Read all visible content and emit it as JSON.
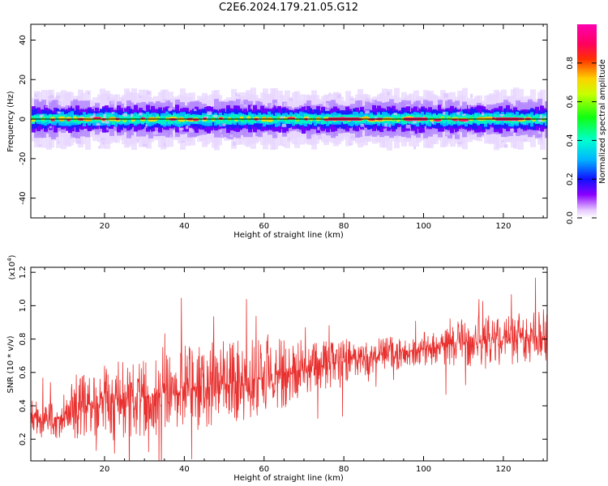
{
  "page_title": "C2E6.2024.179.21.05.G12",
  "colors": {
    "snr_line": "#e8302e",
    "spectral_band_core": "#00e0c0"
  },
  "chart_data": [
    {
      "type": "heatmap",
      "title": "C2E6.2024.179.21.05.G12",
      "xlabel": "Height of straight line (km)",
      "ylabel": "Frequency (Hz)",
      "xlim": [
        1.5,
        131
      ],
      "ylim": [
        -50,
        48
      ],
      "x_ticks": [
        20,
        40,
        60,
        80,
        100,
        120
      ],
      "y_ticks": [
        -40,
        -20,
        0,
        20,
        40
      ],
      "x_tick_labels": [
        "20",
        "40",
        "60",
        "80",
        "100",
        "120"
      ],
      "y_tick_labels": [
        "-40",
        "-20",
        "0",
        "20",
        "40"
      ],
      "band_center_hz": 0,
      "band_halfwidth_hz": 4,
      "colormap": "rainbow",
      "colorbar": {
        "label": "Normalized spectral amplitude",
        "range": [
          0.0,
          1.0
        ],
        "ticks": [
          0.0,
          0.2,
          0.4,
          0.6,
          0.8
        ],
        "tick_labels": [
          "0.0",
          "0.2",
          "0.4",
          "0.6",
          "0.8"
        ]
      },
      "grid": false
    },
    {
      "type": "line",
      "xlabel": "Height of straight line (km)",
      "ylabel": "SNR (10 * v/v)",
      "y_multiplier_label": "(x10",
      "y_multiplier_exponent": "4",
      "y_multiplier_close": ")",
      "xlim": [
        1.5,
        131
      ],
      "ylim": [
        0.07,
        1.23
      ],
      "x_ticks": [
        20,
        40,
        60,
        80,
        100,
        120
      ],
      "y_ticks": [
        0.2,
        0.4,
        0.6,
        0.8,
        1.0,
        1.2
      ],
      "x_tick_labels": [
        "20",
        "40",
        "60",
        "80",
        "100",
        "120"
      ],
      "y_tick_labels": [
        "0.2",
        "0.4",
        "0.6",
        "0.8",
        "1.0",
        "1.2"
      ],
      "trend_x": [
        2,
        5,
        10,
        15,
        20,
        30,
        40,
        50,
        60,
        70,
        80,
        90,
        100,
        110,
        115,
        120,
        130
      ],
      "trend_mean": [
        0.34,
        0.3,
        0.35,
        0.4,
        0.42,
        0.46,
        0.5,
        0.54,
        0.57,
        0.62,
        0.67,
        0.71,
        0.74,
        0.78,
        0.79,
        0.8,
        0.82
      ],
      "trend_spread": [
        0.1,
        0.1,
        0.14,
        0.2,
        0.24,
        0.25,
        0.26,
        0.25,
        0.23,
        0.18,
        0.13,
        0.1,
        0.1,
        0.14,
        0.17,
        0.16,
        0.16
      ],
      "sample_count": 1500,
      "grid": false
    }
  ]
}
